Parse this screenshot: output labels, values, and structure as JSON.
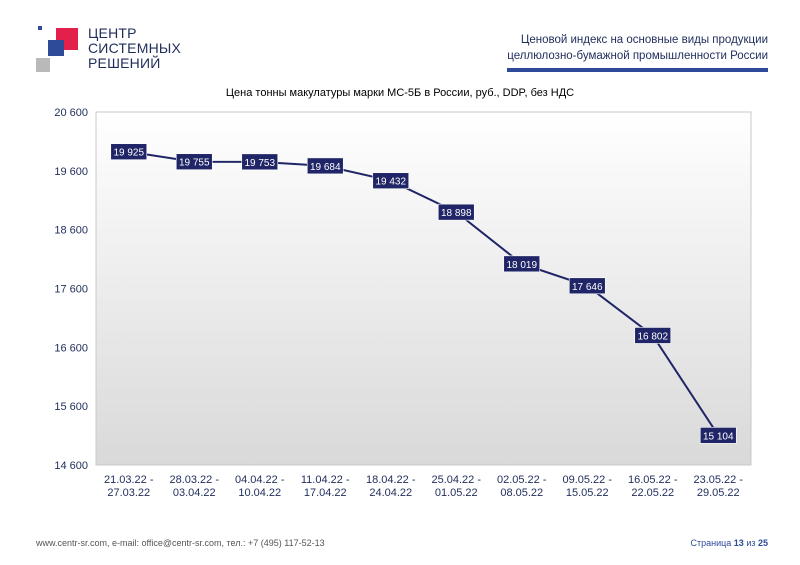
{
  "logo": {
    "lines": [
      "ЦЕНТР",
      "СИСТЕМНЫХ",
      "РЕШЕНИЙ"
    ]
  },
  "header": {
    "line1": "Ценовой индекс на основные виды продукции",
    "line2": "целлюлозно-бумажной промышленности России"
  },
  "footer": {
    "contacts": "www.centr-sr.com, e-mail: office@centr-sr.com, тел.: +7 (495) 117-52-13",
    "page_prefix": "Страница",
    "page_current": "13",
    "page_sep": "из",
    "page_total": "25"
  },
  "colors": {
    "line": "#1f2566",
    "label_bg": "#1f2566",
    "label_text": "#ffffff",
    "axis_text": "#1f2d5a",
    "accent": "#2e4b9a"
  },
  "chart_data": {
    "type": "line",
    "title": "Цена тонны макулатуры марки МС-5Б в России, руб., DDP, без НДС",
    "categories": [
      [
        "21.03.22 -",
        "27.03.22"
      ],
      [
        "28.03.22 -",
        "03.04.22"
      ],
      [
        "04.04.22 -",
        "10.04.22"
      ],
      [
        "11.04.22 -",
        "17.04.22"
      ],
      [
        "18.04.22 -",
        "24.04.22"
      ],
      [
        "25.04.22 -",
        "01.05.22"
      ],
      [
        "02.05.22 -",
        "08.05.22"
      ],
      [
        "09.05.22 -",
        "15.05.22"
      ],
      [
        "16.05.22 -",
        "22.05.22"
      ],
      [
        "23.05.22 -",
        "29.05.22"
      ]
    ],
    "values": [
      19925,
      19755,
      19753,
      19684,
      19432,
      18898,
      18019,
      17646,
      16802,
      15104
    ],
    "value_labels": [
      "19 925",
      "19 755",
      "19 753",
      "19 684",
      "19 432",
      "18 898",
      "18 019",
      "17 646",
      "16 802",
      "15 104"
    ],
    "ylim": [
      14600,
      20600
    ],
    "yticks": [
      14600,
      15600,
      16600,
      17600,
      18600,
      19600,
      20600
    ],
    "ytick_labels": [
      "14 600",
      "15 600",
      "16 600",
      "17 600",
      "18 600",
      "19 600",
      "20 600"
    ],
    "grid": false,
    "legend": "none"
  }
}
